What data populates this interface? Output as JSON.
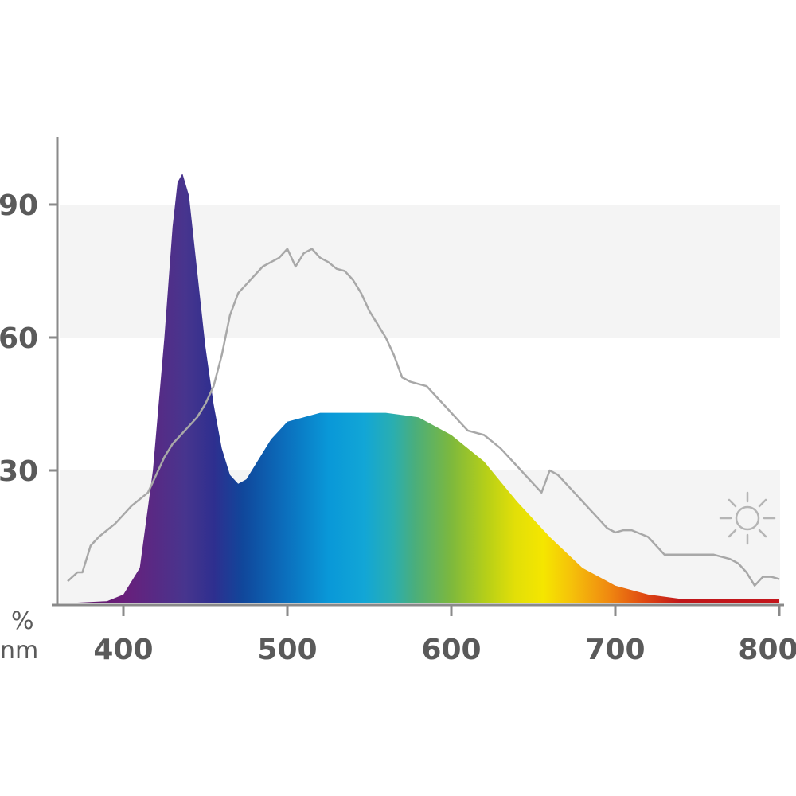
{
  "chart_data": {
    "type": "area",
    "xlabel": "nm",
    "ylabel": "%",
    "xlim": [
      362,
      800
    ],
    "ylim": [
      0,
      107
    ],
    "x_ticks": [
      400,
      500,
      600,
      700,
      800
    ],
    "y_ticks": [
      30,
      60,
      90
    ],
    "grid": "alternating horizontal bands",
    "legend": "none",
    "series": [
      {
        "role": "lamp spectrum (spectrum-colored area)",
        "x": [
          362,
          390,
          400,
          410,
          418,
          425,
          430,
          433,
          436,
          440,
          445,
          450,
          455,
          460,
          465,
          470,
          475,
          480,
          490,
          500,
          520,
          540,
          560,
          580,
          600,
          620,
          640,
          660,
          680,
          700,
          720,
          740,
          760,
          780,
          800
        ],
        "y": [
          0,
          0.5,
          2,
          8,
          30,
          60,
          85,
          95,
          97,
          92,
          75,
          58,
          45,
          35,
          29,
          27,
          28,
          31,
          37,
          41,
          43,
          43,
          43,
          42,
          38,
          32,
          23,
          15,
          8,
          4,
          2,
          1,
          1,
          1,
          1
        ]
      },
      {
        "role": "daylight spectrum (gray line)",
        "x": [
          366,
          372,
          375,
          380,
          385,
          390,
          395,
          400,
          405,
          410,
          415,
          420,
          425,
          430,
          435,
          440,
          445,
          450,
          455,
          460,
          465,
          470,
          475,
          480,
          485,
          490,
          495,
          500,
          505,
          510,
          515,
          520,
          525,
          530,
          535,
          540,
          545,
          550,
          555,
          560,
          565,
          570,
          575,
          580,
          585,
          590,
          595,
          600,
          605,
          610,
          615,
          620,
          625,
          630,
          635,
          640,
          645,
          650,
          655,
          660,
          665,
          670,
          675,
          680,
          685,
          690,
          695,
          700,
          705,
          710,
          720,
          730,
          740,
          750,
          760,
          770,
          775,
          780,
          785,
          790,
          795,
          800
        ],
        "y": [
          5,
          7,
          7,
          13,
          15,
          16.5,
          18,
          20,
          22,
          23.5,
          25,
          29,
          33,
          36,
          38,
          40,
          42,
          45,
          49,
          56,
          65,
          70,
          72,
          74,
          76,
          77,
          78,
          80,
          76,
          79,
          80,
          78,
          77,
          75.5,
          75,
          73,
          70,
          66,
          63,
          60,
          56,
          51,
          50,
          49.5,
          49,
          47,
          45,
          43,
          41,
          39,
          38.5,
          38,
          36.5,
          35,
          33,
          31,
          29,
          27,
          25,
          30,
          29,
          27,
          25,
          23,
          21,
          19,
          17,
          16,
          16.5,
          16.5,
          15,
          11,
          11,
          11,
          11,
          10,
          9,
          7,
          4,
          6,
          6,
          5.5
        ]
      }
    ]
  },
  "icons": {
    "sun": "sun-icon"
  }
}
